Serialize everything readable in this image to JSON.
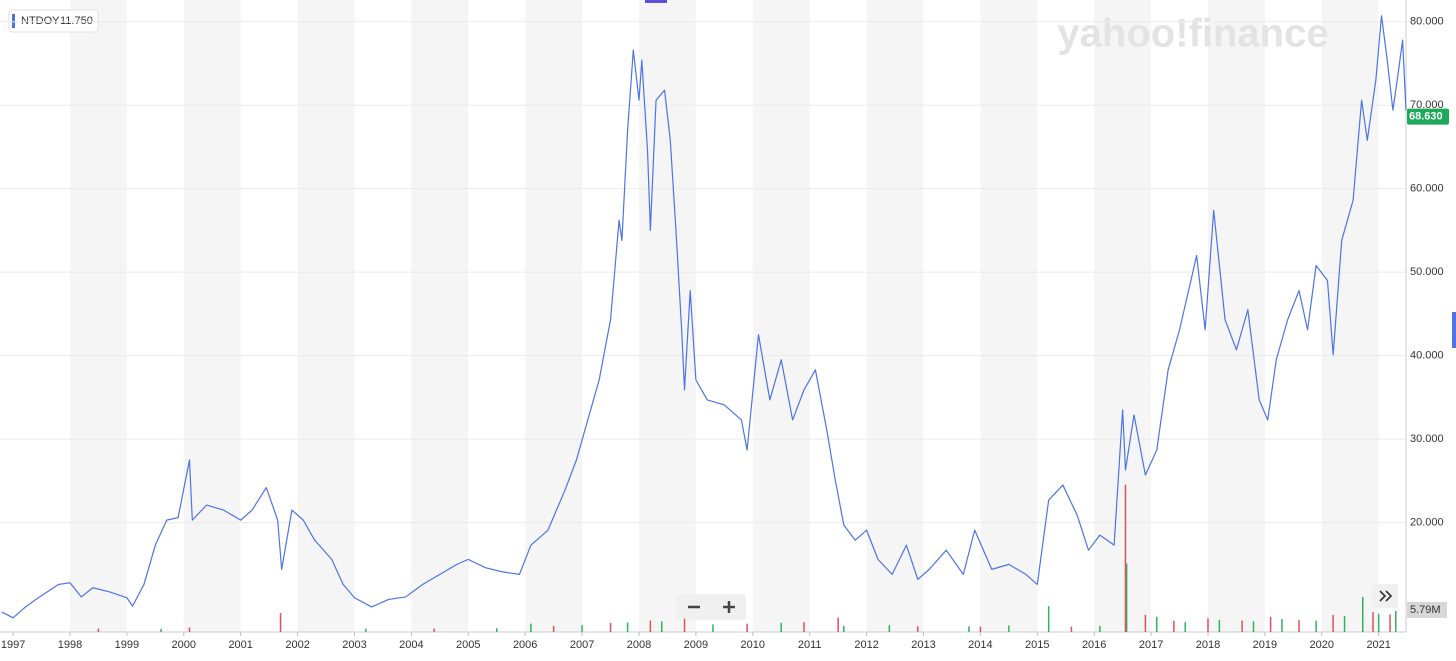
{
  "chart_data": {
    "type": "line",
    "ticker": {
      "symbol": "NTDOY",
      "price": {
        "value": 11.75,
        "label": "11.750"
      }
    },
    "watermark": "yahoo!finance",
    "xlim": [
      1996.77,
      2021.48
    ],
    "xticks": [
      1997,
      1998,
      1999,
      2000,
      2001,
      2002,
      2003,
      2004,
      2005,
      2006,
      2007,
      2008,
      2009,
      2010,
      2011,
      2012,
      2013,
      2014,
      2015,
      2016,
      2017,
      2018,
      2019,
      2020,
      2021
    ],
    "ylim": [
      6.9,
      82.6
    ],
    "yticks": [
      {
        "value": 20,
        "label": "20.000"
      },
      {
        "value": 30,
        "label": "30.000"
      },
      {
        "value": 40,
        "label": "40.000"
      },
      {
        "value": 50,
        "label": "50.000"
      },
      {
        "value": 60,
        "label": "60.000"
      },
      {
        "value": 70,
        "label": "70.000"
      },
      {
        "value": 80,
        "label": "80.000"
      }
    ],
    "grid": true,
    "last_price": {
      "value": 68.63,
      "label": "68.630",
      "color": "#1ea85a"
    },
    "series": [
      {
        "color": "#4d73e6",
        "x": [
          1996.8,
          1997.0,
          1997.2,
          1997.4,
          1997.6,
          1997.8,
          1998.0,
          1998.2,
          1998.4,
          1998.7,
          1999.0,
          1999.1,
          1999.3,
          1999.5,
          1999.7,
          1999.9,
          2000.1,
          2000.15,
          2000.4,
          2000.7,
          2001.0,
          2001.2,
          2001.45,
          2001.65,
          2001.72,
          2001.9,
          2002.1,
          2002.3,
          2002.6,
          2002.8,
          2003.0,
          2003.3,
          2003.6,
          2003.9,
          2004.2,
          2004.5,
          2004.8,
          2005.0,
          2005.3,
          2005.6,
          2005.9,
          2006.1,
          2006.4,
          2006.7,
          2006.9,
          2007.1,
          2007.3,
          2007.5,
          2007.65,
          2007.7,
          2007.8,
          2007.9,
          2008.0,
          2008.05,
          2008.15,
          2008.2,
          2008.3,
          2008.45,
          2008.55,
          2008.65,
          2008.75,
          2008.8,
          2008.9,
          2009.0,
          2009.2,
          2009.5,
          2009.8,
          2009.9,
          2010.1,
          2010.3,
          2010.5,
          2010.7,
          2010.9,
          2011.1,
          2011.3,
          2011.45,
          2011.6,
          2011.8,
          2012.0,
          2012.2,
          2012.45,
          2012.7,
          2012.9,
          2013.1,
          2013.4,
          2013.7,
          2013.9,
          2014.2,
          2014.5,
          2014.8,
          2015.0,
          2015.2,
          2015.45,
          2015.7,
          2015.9,
          2016.1,
          2016.35,
          2016.5,
          2016.55,
          2016.7,
          2016.9,
          2017.1,
          2017.3,
          2017.5,
          2017.7,
          2017.8,
          2017.95,
          2018.1,
          2018.3,
          2018.5,
          2018.7,
          2018.9,
          2019.05,
          2019.2,
          2019.4,
          2019.6,
          2019.75,
          2019.9,
          2020.1,
          2020.2,
          2020.35,
          2020.55,
          2020.7,
          2020.8,
          2020.95,
          2021.05,
          2021.15,
          2021.25,
          2021.35,
          2021.42,
          2021.48
        ],
        "values": [
          9.3,
          8.6,
          9.8,
          10.8,
          11.7,
          12.6,
          12.8,
          11.1,
          12.2,
          11.7,
          11.0,
          10.0,
          12.6,
          17.3,
          20.3,
          20.6,
          27.5,
          20.3,
          22.1,
          21.5,
          20.3,
          21.5,
          24.2,
          20.3,
          14.4,
          21.5,
          20.3,
          17.9,
          15.6,
          12.6,
          11.0,
          9.9,
          10.8,
          11.1,
          12.6,
          13.8,
          15.0,
          15.6,
          14.6,
          14.1,
          13.8,
          17.3,
          19.1,
          23.9,
          27.5,
          32.3,
          37.1,
          44.3,
          56.2,
          53.8,
          67.0,
          76.6,
          70.6,
          75.4,
          64.6,
          55.0,
          70.6,
          71.8,
          65.8,
          55.0,
          43.1,
          35.9,
          47.8,
          37.1,
          34.7,
          34.1,
          32.3,
          28.7,
          42.5,
          34.7,
          39.5,
          32.3,
          35.9,
          38.3,
          31.1,
          25.1,
          19.7,
          17.9,
          19.1,
          15.6,
          13.8,
          17.3,
          13.2,
          14.4,
          16.7,
          13.8,
          19.1,
          14.4,
          15.0,
          13.8,
          12.6,
          22.7,
          24.5,
          20.9,
          16.7,
          18.5,
          17.3,
          33.5,
          26.3,
          32.9,
          25.7,
          28.7,
          38.3,
          43.1,
          49.0,
          52.0,
          43.1,
          57.4,
          44.3,
          40.7,
          45.5,
          34.7,
          32.3,
          39.5,
          44.3,
          47.8,
          43.1,
          50.8,
          49.0,
          40.1,
          53.8,
          58.6,
          70.6,
          65.8,
          73.0,
          80.7,
          75.4,
          69.4,
          74.2,
          77.8,
          69.4
        ]
      }
    ],
    "volume": {
      "ylim": [
        0,
        166
      ],
      "last": {
        "value": 5.79,
        "label": "5.79M"
      },
      "up": {
        "color": "#2fb35a",
        "x": [
          1999.6,
          2003.2,
          2005.5,
          2006.1,
          2007.0,
          2007.8,
          2008.4,
          2009.3,
          2010.5,
          2011.6,
          2012.4,
          2013.8,
          2014.5,
          2015.2,
          2016.1,
          2016.57,
          2017.1,
          2017.6,
          2018.2,
          2018.8,
          2019.3,
          2019.9,
          2020.4,
          2020.72,
          2021.0,
          2021.3
        ],
        "values": [
          0.8,
          0.9,
          1.0,
          2.2,
          1.8,
          2.5,
          2.8,
          2.0,
          2.4,
          1.6,
          1.8,
          1.5,
          1.7,
          6.8,
          1.6,
          18.0,
          4.0,
          2.6,
          3.2,
          2.8,
          3.4,
          3.0,
          4.2,
          9.2,
          4.8,
          5.5
        ]
      },
      "down": {
        "color": "#e0505a",
        "x": [
          1998.5,
          2000.1,
          2001.7,
          2004.4,
          2006.5,
          2007.5,
          2008.2,
          2008.8,
          2009.9,
          2010.9,
          2011.5,
          2012.9,
          2014.0,
          2015.6,
          2016.55,
          2016.9,
          2017.4,
          2018.0,
          2018.6,
          2019.1,
          2019.6,
          2020.2,
          2020.9,
          2021.2
        ],
        "values": [
          0.9,
          1.2,
          5.0,
          0.9,
          1.6,
          2.4,
          3.0,
          3.5,
          2.2,
          2.6,
          3.8,
          1.5,
          1.4,
          1.4,
          38.7,
          4.5,
          3.0,
          3.6,
          3.0,
          4.0,
          3.1,
          4.5,
          5.2,
          4.6
        ]
      }
    }
  }
}
